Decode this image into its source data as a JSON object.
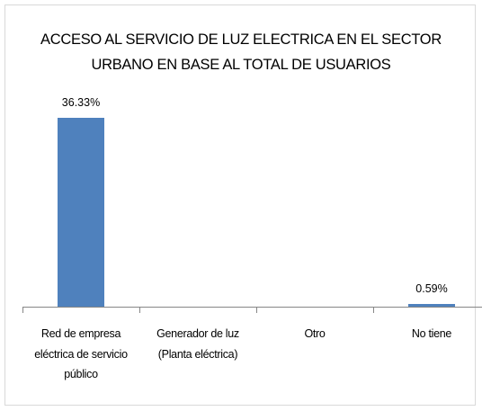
{
  "chart_data": {
    "type": "bar",
    "title": "ACCESO AL SERVICIO DE LUZ ELECTRICA EN EL SECTOR URBANO EN BASE AL TOTAL DE USUARIOS",
    "categories": [
      "Red de empresa eléctrica de servicio público",
      "Generador de luz (Planta eléctrica)",
      "Otro",
      "No tiene"
    ],
    "values": [
      36.33,
      0,
      0,
      0.59
    ],
    "value_labels": [
      "36.33%",
      null,
      null,
      "0.59%"
    ],
    "color": "#4f81bd"
  }
}
